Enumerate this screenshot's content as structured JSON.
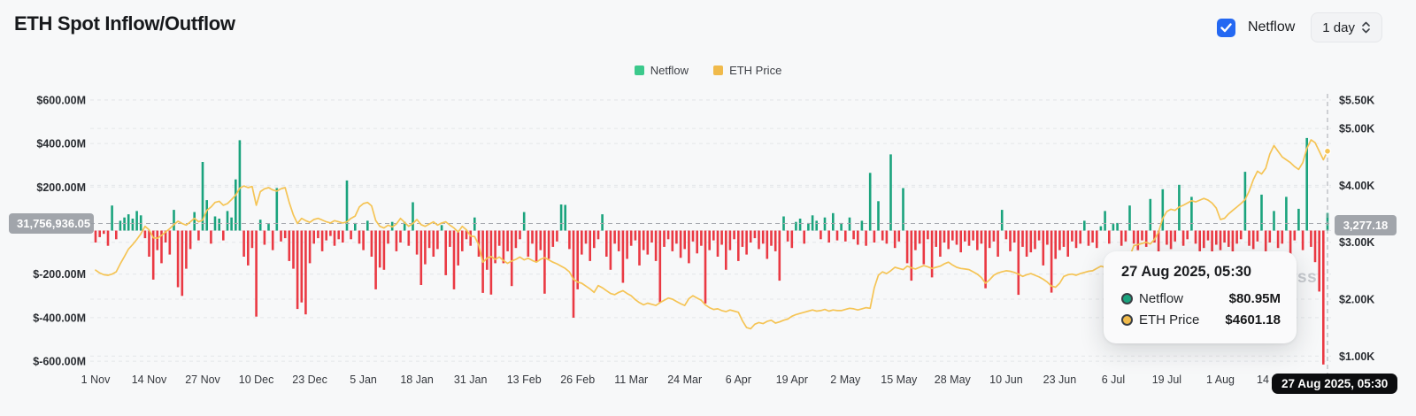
{
  "header": {
    "title": "ETH Spot Inflow/Outflow",
    "netflow_toggle": {
      "label": "Netflow",
      "checked": true,
      "color": "#2468f2"
    },
    "interval_selector": {
      "value": "1 day"
    }
  },
  "legend": [
    {
      "label": "Netflow",
      "color": "#3bc98c"
    },
    {
      "label": "ETH Price",
      "color": "#f0ba4b"
    }
  ],
  "watermark_visible_text": "ss",
  "crosshair": {
    "left_axis_badge": "31,756,936.05",
    "right_axis_badge": "3,277.18",
    "x_axis_badge": "27 Aug 2025, 05:30",
    "y_value_million_usd": 31.76,
    "hovered_day_index": 299
  },
  "tooltip": {
    "title": "27 Aug 2025, 05:30",
    "rows": [
      {
        "label": "Netflow",
        "value": "$80.95M",
        "color": "#1aa37d"
      },
      {
        "label": "ETH Price",
        "value": "$4601.18",
        "color": "#f0ba4b"
      }
    ]
  },
  "chart_data": {
    "type": "bar+line",
    "title": "ETH Spot Inflow/Outflow",
    "start_date": "1 Nov 2024",
    "end_date": "27 Aug 2025",
    "grid": true,
    "left_axis": {
      "name": "Netflow",
      "unit": "USD",
      "ticks": [
        {
          "label": "$600.00M",
          "value": 600
        },
        {
          "label": "$400.00M",
          "value": 400
        },
        {
          "label": "$200.00M",
          "value": 200
        },
        {
          "label": "$-200.00M",
          "value": -200
        },
        {
          "label": "$-400.00M",
          "value": -400
        },
        {
          "label": "$-600.00M",
          "value": -600
        }
      ],
      "grid_values_musd": [
        600,
        400,
        200,
        0,
        -200,
        -400,
        -600
      ],
      "range_musd": [
        -630,
        630
      ]
    },
    "right_axis": {
      "name": "ETH Price",
      "unit": "USD",
      "ticks": [
        {
          "label": "$5.50K",
          "value": 5500
        },
        {
          "label": "$5.00K",
          "value": 5000
        },
        {
          "label": "$4.00K",
          "value": 4000
        },
        {
          "label": "$3.00K",
          "value": 3000
        },
        {
          "label": "$2.00K",
          "value": 2000
        },
        {
          "label": "$1.00K",
          "value": 1000
        }
      ],
      "grid_values_usd": [
        5500,
        5000,
        4000,
        3000,
        2000,
        1000
      ],
      "range_usd": [
        870,
        5610
      ]
    },
    "x_axis": {
      "ticks": [
        {
          "label": "1 Nov",
          "day": 0
        },
        {
          "label": "14 Nov",
          "day": 13
        },
        {
          "label": "27 Nov",
          "day": 26
        },
        {
          "label": "10 Dec",
          "day": 39
        },
        {
          "label": "23 Dec",
          "day": 52
        },
        {
          "label": "5 Jan",
          "day": 65
        },
        {
          "label": "18 Jan",
          "day": 78
        },
        {
          "label": "31 Jan",
          "day": 91
        },
        {
          "label": "13 Feb",
          "day": 104
        },
        {
          "label": "26 Feb",
          "day": 117
        },
        {
          "label": "11 Mar",
          "day": 130
        },
        {
          "label": "24 Mar",
          "day": 143
        },
        {
          "label": "6 Apr",
          "day": 156
        },
        {
          "label": "19 Apr",
          "day": 169
        },
        {
          "label": "2 May",
          "day": 182
        },
        {
          "label": "15 May",
          "day": 195
        },
        {
          "label": "28 May",
          "day": 208
        },
        {
          "label": "10 Jun",
          "day": 221
        },
        {
          "label": "23 Jun",
          "day": 234
        },
        {
          "label": "6 Jul",
          "day": 247
        },
        {
          "label": "19 Jul",
          "day": 260
        },
        {
          "label": "1 Aug",
          "day": 273
        },
        {
          "label": "14 Aug",
          "day": 286
        }
      ],
      "hovered_tick": {
        "label": "27 Aug 2025, 05:30",
        "day": 299
      }
    },
    "series": [
      {
        "name": "Netflow",
        "type": "bar",
        "unit": "million USD",
        "color_positive": "#1aa37d",
        "color_negative": "#ea3943",
        "values": [
          -55,
          -30,
          -15,
          -70,
          115,
          -40,
          45,
          60,
          75,
          55,
          90,
          70,
          -35,
          -120,
          -225,
          -90,
          -150,
          -55,
          -110,
          95,
          -260,
          -300,
          -175,
          -85,
          85,
          -45,
          315,
          140,
          -60,
          65,
          55,
          -45,
          90,
          60,
          235,
          415,
          -120,
          -160,
          -80,
          -395,
          50,
          -65,
          30,
          -90,
          195,
          -50,
          -35,
          -140,
          -175,
          -360,
          -330,
          -385,
          -150,
          -60,
          -35,
          -95,
          -45,
          -25,
          -70,
          -40,
          -55,
          230,
          -40,
          35,
          -60,
          -90,
          45,
          -120,
          -270,
          -170,
          -180,
          -60,
          40,
          -95,
          -55,
          40,
          -70,
          130,
          -110,
          -250,
          -155,
          -80,
          -120,
          -85,
          25,
          -205,
          -75,
          -270,
          -160,
          -95,
          -40,
          -70,
          60,
          -120,
          -286,
          -180,
          -294,
          -150,
          -70,
          -150,
          -95,
          -255,
          -80,
          -40,
          85,
          -120,
          -60,
          -145,
          -90,
          -290,
          -130,
          -75,
          -50,
          120,
          118,
          -85,
          -400,
          -270,
          -110,
          -60,
          -140,
          -80,
          -40,
          75,
          -120,
          -180,
          -60,
          -95,
          -240,
          -130,
          -70,
          -45,
          -160,
          -90,
          -110,
          -55,
          -140,
          -330,
          -75,
          -40,
          -95,
          -60,
          -125,
          -85,
          -150,
          -50,
          -105,
          -70,
          -335,
          -90,
          -45,
          -120,
          -65,
          -180,
          -90,
          -40,
          -140,
          -75,
          -110,
          -55,
          -35,
          -85,
          -60,
          -130,
          -70,
          -95,
          -230,
          65,
          -50,
          -80,
          40,
          55,
          -60,
          35,
          70,
          45,
          -40,
          60,
          -55,
          80,
          -45,
          35,
          -50,
          60,
          -40,
          -65,
          45,
          -70,
          265,
          -55,
          135,
          -45,
          -60,
          350,
          -80,
          -50,
          195,
          -150,
          -230,
          -90,
          -60,
          -155,
          -40,
          -215,
          -75,
          -120,
          -55,
          -85,
          -45,
          -65,
          -100,
          -50,
          -70,
          -45,
          -90,
          -60,
          -265,
          -80,
          -50,
          -120,
          95,
          -40,
          -95,
          -55,
          -295,
          -75,
          -120,
          -100,
          -85,
          -45,
          -160,
          -65,
          -285,
          -130,
          -90,
          -75,
          -120,
          -50,
          -80,
          -60,
          45,
          -70,
          -55,
          -80,
          20,
          90,
          -60,
          30,
          35,
          -70,
          -50,
          115,
          -60,
          -90,
          -45,
          -75,
          145,
          -55,
          -120,
          190,
          -65,
          -85,
          -50,
          210,
          -70,
          -40,
          155,
          -60,
          -95,
          -80,
          -45,
          -110,
          -65,
          -90,
          -55,
          -75,
          -120,
          -60,
          -40,
          270,
          -70,
          -85,
          -50,
          165,
          -95,
          -55,
          90,
          -80,
          -60,
          155,
          -140,
          -45,
          100,
          -90,
          425,
          -75,
          -145,
          -280,
          -615,
          81
        ]
      },
      {
        "name": "ETH Price",
        "type": "line",
        "unit": "USD",
        "color": "#f5c455",
        "values": [
          2510,
          2460,
          2430,
          2420,
          2440,
          2480,
          2620,
          2750,
          2880,
          2960,
          3050,
          3150,
          3280,
          3220,
          3080,
          3070,
          3120,
          3180,
          3240,
          3310,
          3370,
          3330,
          3300,
          3360,
          3420,
          3360,
          3390,
          3560,
          3620,
          3700,
          3720,
          3650,
          3680,
          3750,
          3830,
          3950,
          3990,
          3960,
          3980,
          3650,
          3890,
          3940,
          3960,
          3920,
          3900,
          3940,
          3960,
          3700,
          3480,
          3330,
          3420,
          3380,
          3350,
          3400,
          3420,
          3390,
          3360,
          3340,
          3380,
          3360,
          3340,
          3360,
          3420,
          3460,
          3620,
          3680,
          3700,
          3640,
          3380,
          3280,
          3250,
          3300,
          3270,
          3320,
          3420,
          3350,
          3280,
          3330,
          3400,
          3310,
          3280,
          3320,
          3360,
          3300,
          3340,
          3360,
          3300,
          3250,
          3180,
          3280,
          3220,
          3110,
          3100,
          2950,
          2650,
          2720,
          2750,
          2700,
          2740,
          2680,
          2630,
          2670,
          2700,
          2740,
          2690,
          2720,
          2680,
          2650,
          2700,
          2730,
          2690,
          2650,
          2620,
          2580,
          2540,
          2480,
          2350,
          2300,
          2280,
          2230,
          2180,
          2120,
          2240,
          2200,
          2150,
          2100,
          2080,
          2120,
          2150,
          2100,
          2060,
          1990,
          1940,
          1900,
          1930,
          1910,
          1890,
          1940,
          1980,
          2020,
          2000,
          1960,
          1920,
          1890,
          2010,
          2060,
          2020,
          1980,
          1900,
          1850,
          1820,
          1830,
          1800,
          1780,
          1810,
          1790,
          1770,
          1620,
          1500,
          1480,
          1560,
          1590,
          1570,
          1610,
          1630,
          1580,
          1600,
          1630,
          1650,
          1700,
          1730,
          1750,
          1770,
          1790,
          1810,
          1790,
          1800,
          1820,
          1790,
          1810,
          1800,
          1800,
          1820,
          1840,
          1830,
          1810,
          1830,
          1850,
          1840,
          2200,
          2420,
          2480,
          2450,
          2500,
          2560,
          2540,
          2520,
          2580,
          2550,
          2530,
          2560,
          2590,
          2570,
          2540,
          2560,
          2580,
          2620,
          2650,
          2600,
          2560,
          2540,
          2530,
          2520,
          2480,
          2440,
          2380,
          2280,
          2340,
          2420,
          2460,
          2480,
          2500,
          2490,
          2470,
          2440,
          2400,
          2430,
          2450,
          2420,
          2390,
          2350,
          2300,
          2230,
          2210,
          2280,
          2400,
          2430,
          2440,
          2420,
          2450,
          2470,
          2490,
          2500,
          2540,
          2580,
          2560,
          2540,
          2520,
          2550,
          2600,
          2680,
          2750,
          2940,
          2960,
          2980,
          3000,
          2970,
          3050,
          3180,
          3420,
          3540,
          3580,
          3560,
          3620,
          3650,
          3690,
          3730,
          3710,
          3740,
          3770,
          3740,
          3690,
          3600,
          3400,
          3420,
          3500,
          3560,
          3620,
          3680,
          3750,
          3900,
          4100,
          4250,
          4200,
          4300,
          4550,
          4700,
          4600,
          4500,
          4450,
          4400,
          4330,
          4280,
          4400,
          4650,
          4800,
          4750,
          4600,
          4450,
          4601
        ]
      }
    ]
  }
}
